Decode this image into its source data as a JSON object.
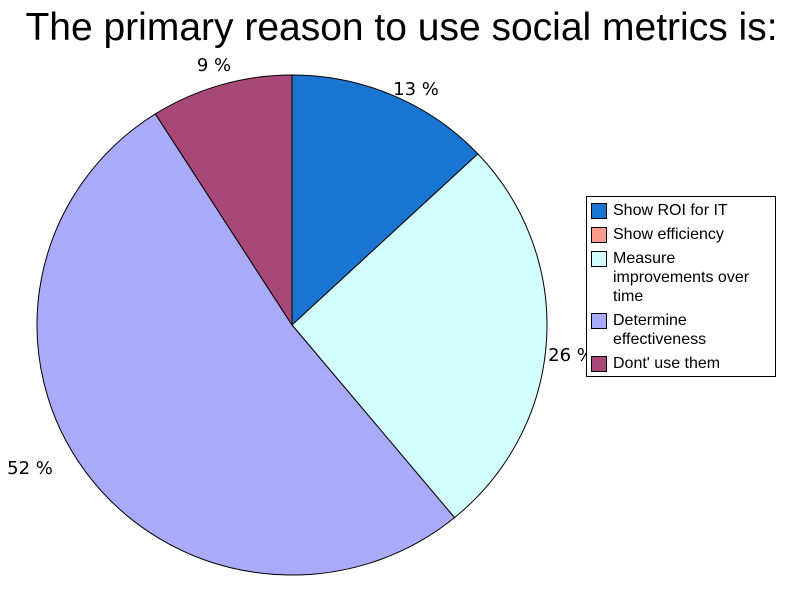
{
  "chart_data": {
    "type": "pie",
    "title": "The primary reason to use social metrics is:",
    "categories": [
      "Show ROI for IT",
      "Show efficiency",
      "Measure improvements over time",
      "Determine effectiveness",
      "Dont' use them"
    ],
    "values": [
      13,
      0,
      26,
      52,
      9
    ],
    "data_labels": [
      "13 %",
      "",
      "26 %",
      "52 %",
      "9 %"
    ],
    "colors": [
      "#1a75d2",
      "#fa9b8e",
      "#d2fefe",
      "#aaaafa",
      "#a84878"
    ],
    "start_angle": "12 o'clock",
    "direction": "clockwise",
    "legend_position": "right"
  }
}
